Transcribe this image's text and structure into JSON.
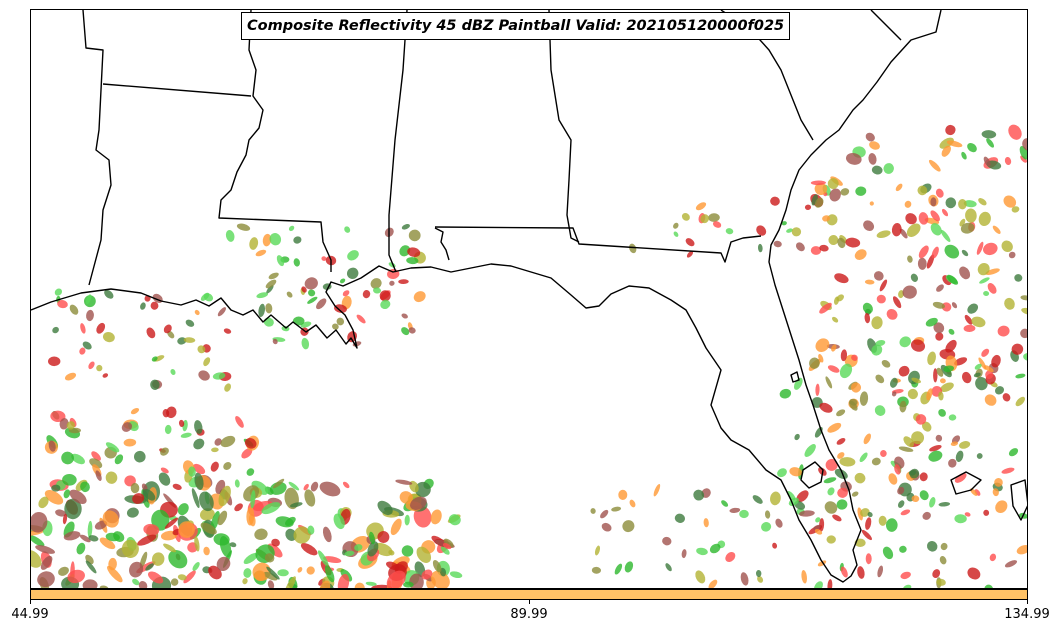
{
  "title": "Composite Reflectivity 45 dBZ Paintball Valid: 202105120000f025",
  "colorbar": {
    "color": "#ffc266",
    "tick_labels": [
      "44.99",
      "89.99",
      "134.99"
    ]
  },
  "map": {
    "region": "US Gulf Coast and Florida",
    "boundary_color": "#000000",
    "paintball_colors": [
      "#ff4d4d",
      "#ff9933",
      "#2db82d",
      "#59d959",
      "#8c8c3a",
      "#a0524d",
      "#3d7a3d",
      "#cc1a1a",
      "#b3b333"
    ]
  }
}
